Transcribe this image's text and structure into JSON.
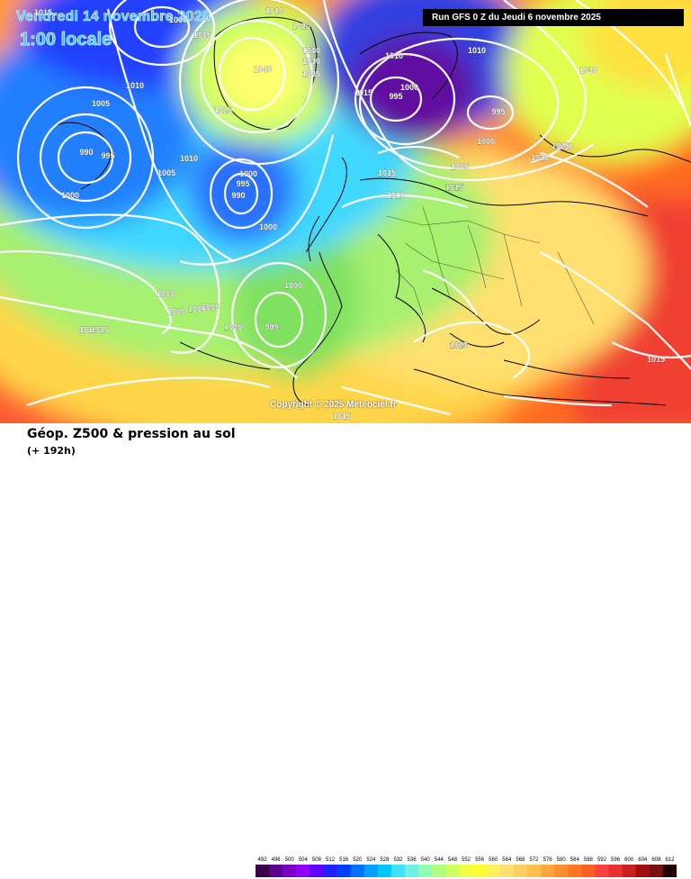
{
  "header": {
    "valid_date": "Vendredi 14 novembre 2025",
    "valid_time": "1:00 locale",
    "run_info": "Run GFS 0 Z du Jeudi 6 novembre 2025"
  },
  "copyright": "Copyright © 2025 Meteociel.fr",
  "footer": {
    "title": "Géop. Z500 & pression au sol",
    "subtitle": "(+ 192h)"
  },
  "legend": {
    "values": [
      "492",
      "496",
      "500",
      "504",
      "508",
      "512",
      "516",
      "520",
      "524",
      "528",
      "532",
      "536",
      "540",
      "544",
      "548",
      "552",
      "556",
      "560",
      "564",
      "568",
      "572",
      "576",
      "580",
      "584",
      "588",
      "592",
      "596",
      "600",
      "604",
      "608",
      "612"
    ],
    "colors": [
      "#3b0050",
      "#5a0090",
      "#7a00c8",
      "#9000ff",
      "#6000ff",
      "#2020ff",
      "#0040ff",
      "#0070ff",
      "#00a0ff",
      "#00c8ff",
      "#40e0ff",
      "#70f0e0",
      "#90ffb0",
      "#b0ff80",
      "#d0ff60",
      "#f0ff40",
      "#ffff30",
      "#fff060",
      "#ffe070",
      "#ffd060",
      "#ffc050",
      "#ffa840",
      "#ff9030",
      "#ff7820",
      "#ff6020",
      "#ff4040",
      "#e83030",
      "#c82020",
      "#a01010",
      "#781010",
      "#200000"
    ]
  },
  "isobar_labels": [
    "1015",
    "1015",
    "1015",
    "1020",
    "1020",
    "1000",
    "1005",
    "1005",
    "1010",
    "990",
    "995",
    "1000",
    "1005",
    "1010",
    "1040",
    "1025",
    "1030",
    "1035",
    "1020",
    "1010",
    "1010",
    "1015",
    "995",
    "1000",
    "1010",
    "1030",
    "995",
    "1000",
    "1005",
    "1015",
    "1025",
    "1020",
    "1010",
    "1015",
    "990",
    "995",
    "1000",
    "1005",
    "1000",
    "1000",
    "1000",
    "1005",
    "1005",
    "1015",
    "1000",
    "995",
    "1020",
    "1015",
    "1015",
    "1010"
  ]
}
